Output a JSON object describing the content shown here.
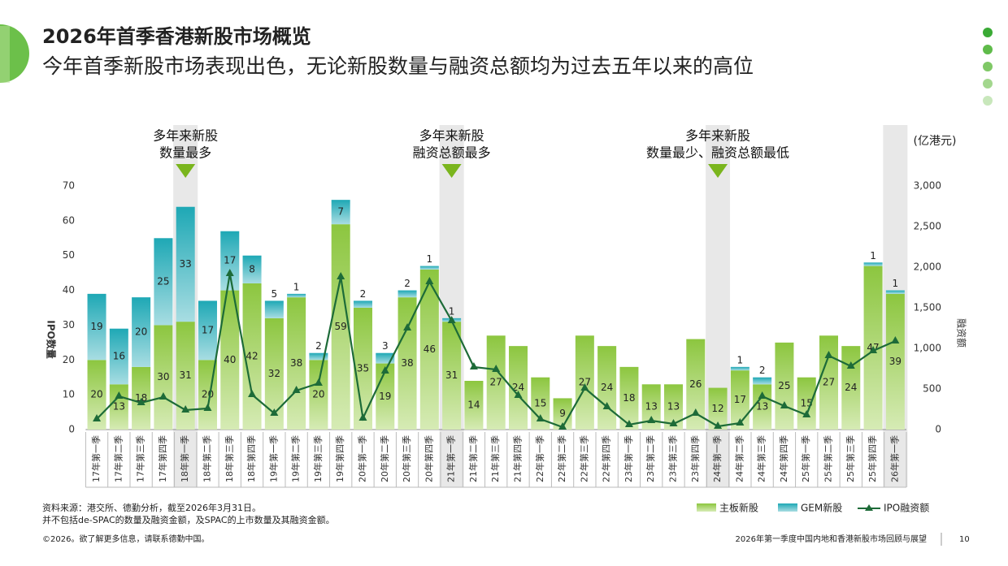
{
  "header": {
    "title": "2026年首季香港新股市场概览",
    "subtitle": "今年首季新股市场表现出色，无论新股数量与融资总额均为过去五年以来的高位"
  },
  "chart_data": {
    "type": "bar",
    "stacked": true,
    "categories": [
      "17年第一季",
      "17年第二季",
      "17年第三季",
      "17年第四季",
      "18年第一季",
      "18年第二季",
      "18年第三季",
      "18年第四季",
      "19年第一季",
      "19年第二季",
      "19年第三季",
      "19年第四季",
      "20年第一季",
      "20年第二季",
      "20年第三季",
      "20年第四季",
      "21年第一季",
      "21年第二季",
      "21年第三季",
      "21年第四季",
      "22年第一季",
      "22年第二季",
      "22年第三季",
      "22年第四季",
      "23年第一季",
      "23年第二季",
      "23年第三季",
      "23年第四季",
      "24年第一季",
      "24年第二季",
      "24年第三季",
      "24年第四季",
      "25年第一季",
      "25年第二季",
      "25年第三季",
      "25年第四季",
      "26年第一季"
    ],
    "series": [
      {
        "name": "主板新股",
        "color": "#8cc63f",
        "values": [
          20,
          13,
          18,
          30,
          31,
          20,
          40,
          42,
          32,
          38,
          20,
          59,
          35,
          19,
          38,
          46,
          31,
          14,
          27,
          24,
          15,
          9,
          27,
          24,
          18,
          13,
          13,
          26,
          12,
          17,
          13,
          25,
          15,
          27,
          24,
          47,
          39
        ]
      },
      {
        "name": "GEM新股",
        "color": "#1ea8b5",
        "values": [
          19,
          16,
          20,
          25,
          33,
          17,
          17,
          8,
          5,
          1,
          2,
          7,
          2,
          3,
          2,
          1,
          1,
          null,
          null,
          null,
          null,
          null,
          null,
          null,
          null,
          null,
          null,
          null,
          null,
          1,
          2,
          null,
          null,
          null,
          null,
          1,
          1
        ]
      },
      {
        "name": "IPO融资额",
        "type": "line",
        "axis": "y2",
        "color": "#1d6b38",
        "values": [
          130,
          410,
          330,
          400,
          240,
          260,
          1920,
          430,
          200,
          480,
          570,
          1880,
          140,
          720,
          1250,
          1820,
          1340,
          770,
          740,
          420,
          130,
          30,
          510,
          280,
          60,
          110,
          70,
          200,
          40,
          80,
          410,
          290,
          180,
          910,
          780,
          970,
          1090
        ]
      }
    ],
    "ylabel": "IPO数量",
    "y2label": "融资额",
    "y2unit": "(亿港元)",
    "ylim": [
      0,
      70
    ],
    "yticks": [
      0,
      10,
      20,
      30,
      40,
      50,
      60,
      70
    ],
    "y2lim": [
      0,
      3000
    ],
    "y2ticks": [
      0,
      500,
      {
        "value": 1000,
        "label": "1,000"
      },
      {
        "value": 1500,
        "label": "1,500"
      },
      {
        "value": 2000,
        "label": "2,000"
      },
      {
        "value": 2500,
        "label": "2,500"
      },
      {
        "value": 3000,
        "label": "3,000"
      }
    ],
    "annotations": [
      [
        "多年来新股",
        "数量最多"
      ],
      [
        "多年来新股",
        "融资总额最多"
      ],
      [
        "多年来新股",
        "数量最少、融资总额最低"
      ]
    ]
  },
  "footer": {
    "source": [
      "资料来源：港交所、德勤分析，截至2026年3月31日。",
      "并不包括de-SPAC的数量及融资金额，及SPAC的上市数量及其融资金额。"
    ],
    "copyright": "©2026。欲了解更多信息，请联系德勤中国。",
    "report": "2026年第一季度中国内地和香港新股市场回顾与展望",
    "page": "10"
  }
}
